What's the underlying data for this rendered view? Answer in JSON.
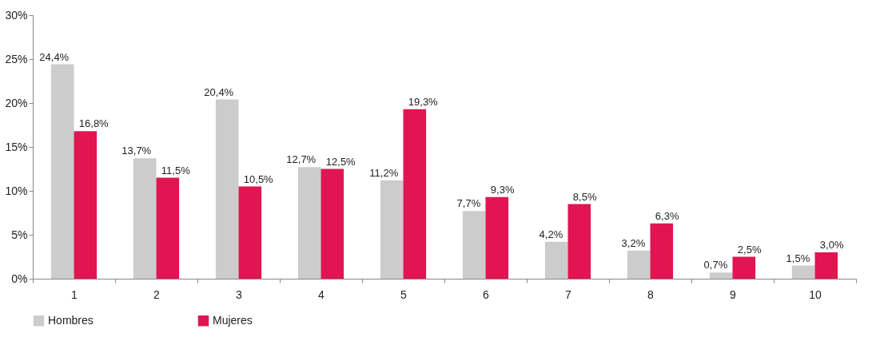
{
  "chart_data": {
    "type": "bar",
    "categories": [
      "1",
      "2",
      "3",
      "4",
      "5",
      "6",
      "7",
      "8",
      "9",
      "10"
    ],
    "series": [
      {
        "name": "Hombres",
        "color": "#cccccc",
        "values": [
          24.4,
          13.7,
          20.4,
          12.7,
          11.2,
          7.7,
          4.2,
          3.2,
          0.7,
          1.5
        ],
        "value_labels": [
          "24,4%",
          "13,7%",
          "20,4%",
          "12,7%",
          "11,2%",
          "7,7%",
          "4,2%",
          "3,2%",
          "0,7%",
          "1,5%"
        ]
      },
      {
        "name": "Mujeres",
        "color": "#e11551",
        "values": [
          16.8,
          11.5,
          10.5,
          12.5,
          19.3,
          9.3,
          8.5,
          6.3,
          2.5,
          3.0
        ],
        "value_labels": [
          "16,8%",
          "11,5%",
          "10,5%",
          "12,5%",
          "19,3%",
          "9,3%",
          "8,5%",
          "6,3%",
          "2,5%",
          "3,0%"
        ]
      }
    ],
    "ylim": [
      0,
      30
    ],
    "yticks": [
      {
        "value": 0,
        "label": "0%"
      },
      {
        "value": 5,
        "label": "5%"
      },
      {
        "value": 10,
        "label": "10%"
      },
      {
        "value": 15,
        "label": "15%"
      },
      {
        "value": 20,
        "label": "20%"
      },
      {
        "value": 25,
        "label": "25%"
      },
      {
        "value": 30,
        "label": "30%"
      }
    ],
    "grid": false,
    "legend": "bottom"
  }
}
